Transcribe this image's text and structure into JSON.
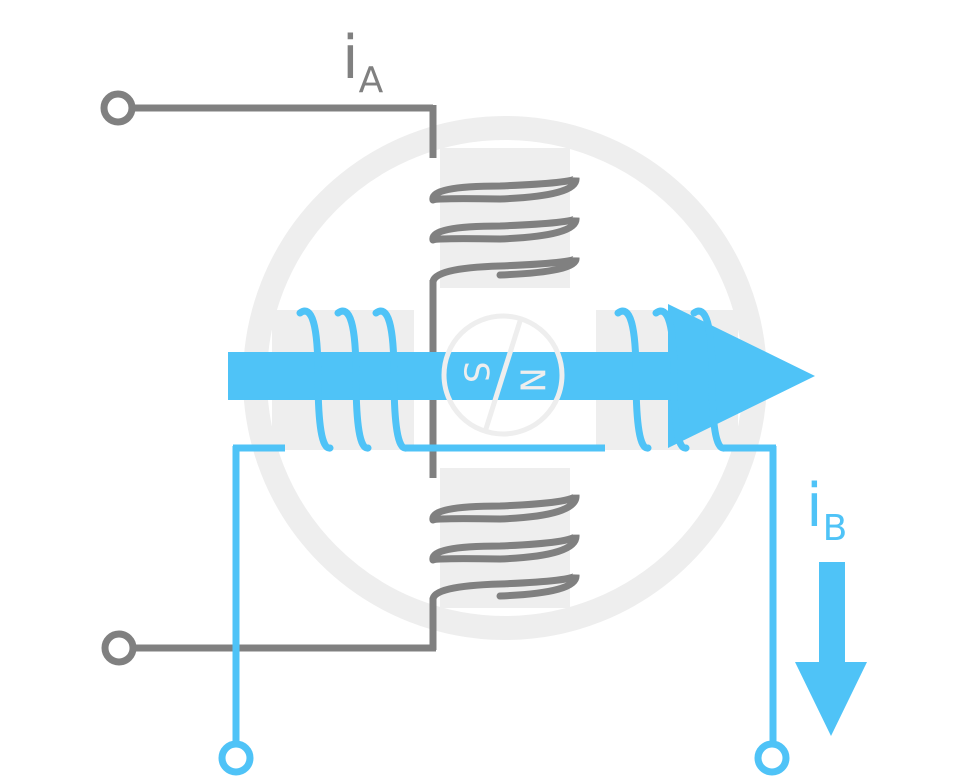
{
  "labels": {
    "current_a": {
      "main": "i",
      "sub": "A"
    },
    "current_b": {
      "main": "i",
      "sub": "B"
    },
    "rotor_south": "S",
    "rotor_north": "N"
  },
  "colors": {
    "phase_a": "#808080",
    "phase_b": "#4fc3f7",
    "stator": "#eeeeee",
    "background": "#ffffff"
  }
}
